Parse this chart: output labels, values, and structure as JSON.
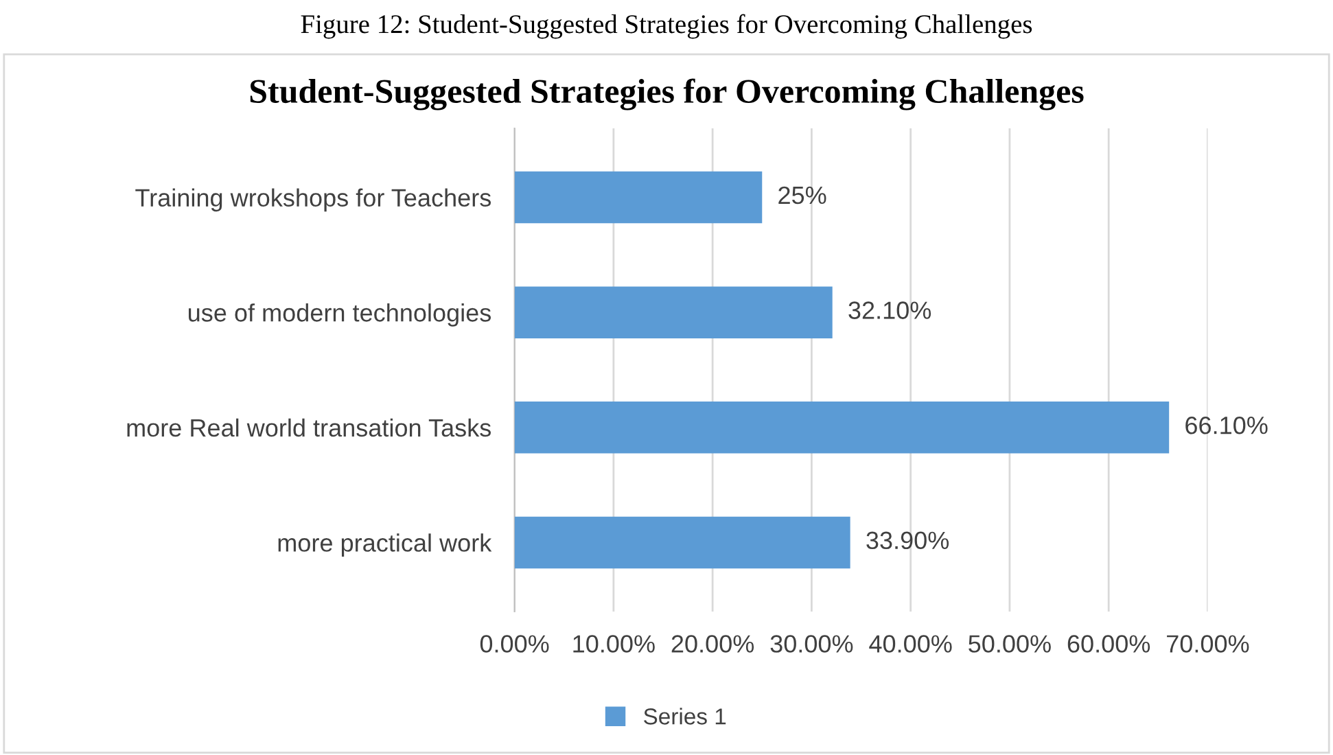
{
  "chart_data": {
    "type": "bar",
    "orientation": "horizontal",
    "title": "Student-Suggested Strategies for Overcoming Challenges",
    "annotations": [
      "Figure 12: Student-Suggested Strategies for Overcoming Challenges"
    ],
    "categories": [
      "Training wrokshops for Teachers",
      "use of modern technologies",
      "more Real world transation Tasks",
      "more practical work"
    ],
    "series": [
      {
        "name": "Series 1",
        "color": "#5b9bd5",
        "values": [
          25,
          32.1,
          66.1,
          33.9
        ]
      }
    ],
    "value_labels": [
      "25%",
      "32.10%",
      "66.10%",
      "33.90%"
    ],
    "xlim": [
      0,
      70
    ],
    "xticks": [
      {
        "value": 0,
        "label": "0.00%"
      },
      {
        "value": 10,
        "label": "10.00%"
      },
      {
        "value": 20,
        "label": "20.00%"
      },
      {
        "value": 30,
        "label": "30.00%"
      },
      {
        "value": 40,
        "label": "40.00%"
      },
      {
        "value": 50,
        "label": "50.00%"
      },
      {
        "value": 60,
        "label": "60.00%"
      },
      {
        "value": 70,
        "label": "70.00%"
      }
    ],
    "grid": "x",
    "legend": "bottom"
  }
}
